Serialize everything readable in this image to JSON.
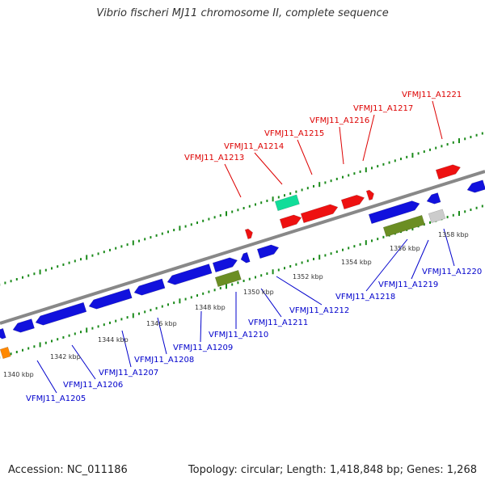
{
  "title": "Vibrio fischeri MJ11 chromosome II, complete sequence",
  "accession": "Accession: NC_011186",
  "stats": "Topology: circular; Length: 1,418,848 bp; Genes: 1,268",
  "colors": {
    "backbone": "#888888",
    "tick": "#1a8a1a",
    "label_top": "#dd0000",
    "label_bottom": "#0000cc",
    "gene_blue": "#1111dd",
    "gene_red": "#ee1111",
    "gene_olive": "#6b8e23",
    "gene_teal": "#11dd99",
    "gene_gray": "#cccccc",
    "gene_orange": "#ff8800"
  },
  "scale": {
    "tick_labels": [
      "1340 kbp",
      "1342 kbp",
      "1344 kbp",
      "1346 kbp",
      "1348 kbp",
      "1350 kbp",
      "1352 kbp",
      "1354 kbp",
      "1356 kbp",
      "1358 kbp"
    ]
  },
  "top_labels": [
    "VFMJ11_A1213",
    "VFMJ11_A1214",
    "VFMJ11_A1215",
    "VFMJ11_A1216",
    "VFMJ11_A1217",
    "VFMJ11_A1221"
  ],
  "bottom_labels": [
    "VFMJ11_A1205",
    "VFMJ11_A1206",
    "VFMJ11_A1207",
    "VFMJ11_A1208",
    "VFMJ11_A1209",
    "VFMJ11_A1210",
    "VFMJ11_A1211",
    "VFMJ11_A1212",
    "VFMJ11_A1218",
    "VFMJ11_A1219",
    "VFMJ11_A1220"
  ]
}
